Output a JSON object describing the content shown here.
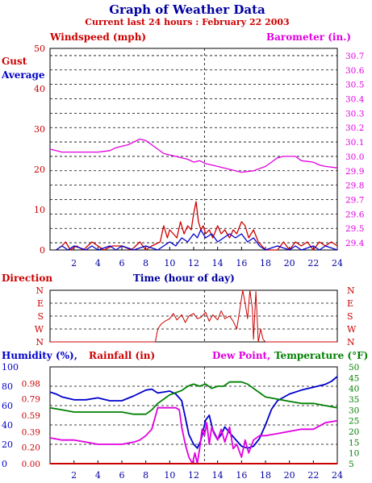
{
  "header": {
    "title": "Graph of Weather Data",
    "subtitle": "Current last 24 hours : February 22 2003"
  },
  "colors": {
    "navy": "#0000a0",
    "red": "#cc0000",
    "magenta": "#e000e0",
    "green": "#008000",
    "blue": "#0000cc",
    "black": "#000000"
  },
  "chart_data": [
    {
      "type": "line",
      "labels": {
        "windspeed": "Windspeed (mph)",
        "barometer": "Barometer (in.)",
        "gust": "Gust",
        "average": "Average",
        "xlabel": "Time (hour of day)"
      },
      "xlim": [
        0,
        24
      ],
      "x_ticks": [
        2,
        4,
        6,
        8,
        10,
        12,
        14,
        16,
        18,
        20,
        22,
        24
      ],
      "left_axis": {
        "ylim": [
          0,
          50
        ],
        "ticks": [
          0,
          10,
          20,
          30,
          40,
          50
        ]
      },
      "right_axis": {
        "ylim": [
          29.35,
          30.75
        ],
        "ticks": [
          29.4,
          29.5,
          29.6,
          29.7,
          29.8,
          29.9,
          30.0,
          30.1,
          30.2,
          30.3,
          30.4,
          30.5,
          30.6,
          30.7
        ]
      },
      "series": [
        {
          "name": "Barometer (in.)",
          "axis": "right",
          "color": "#e000e0",
          "x": [
            0,
            0.5,
            1,
            2,
            3,
            4,
            5,
            5.5,
            6,
            6.5,
            7,
            7.5,
            8,
            8.5,
            9,
            9.5,
            10,
            11,
            11.5,
            12,
            12.5,
            13,
            13.5,
            14,
            15,
            16,
            17,
            18,
            18.5,
            19,
            19.5,
            20,
            20.5,
            21,
            22,
            22.5,
            23,
            24
          ],
          "y": [
            30.05,
            30.04,
            30.03,
            30.03,
            30.03,
            30.03,
            30.04,
            30.06,
            30.07,
            30.08,
            30.1,
            30.12,
            30.11,
            30.08,
            30.05,
            30.02,
            30.01,
            29.99,
            29.98,
            29.96,
            29.97,
            29.95,
            29.94,
            29.93,
            29.91,
            29.89,
            29.9,
            29.93,
            29.96,
            29.99,
            30.0,
            30.0,
            30.0,
            29.97,
            29.96,
            29.94,
            29.93,
            29.92
          ]
        },
        {
          "name": "Gust",
          "axis": "left",
          "color": "#cc0000",
          "x": [
            0.5,
            1,
            1.3,
            1.7,
            2.2,
            2.8,
            3.5,
            4.5,
            5.2,
            6,
            6.8,
            7.5,
            8,
            8.5,
            9.2,
            9.5,
            9.8,
            10,
            10.3,
            10.6,
            10.9,
            11.2,
            11.5,
            11.8,
            12,
            12.2,
            12.4,
            12.6,
            12.8,
            13,
            13.3,
            13.6,
            14,
            14.3,
            14.6,
            15,
            15.3,
            15.6,
            16,
            16.3,
            16.6,
            17,
            17.4,
            18,
            19,
            19.5,
            20,
            20.5,
            21,
            21.5,
            22,
            22.5,
            23,
            23.5,
            24
          ],
          "y": [
            0,
            1,
            2,
            0,
            1,
            0,
            2,
            0,
            1,
            1,
            0,
            2,
            0,
            1,
            2,
            6,
            3,
            5,
            4,
            3,
            7,
            4,
            6,
            5,
            9,
            12,
            7,
            5,
            6,
            4,
            5,
            3,
            6,
            4,
            5,
            3,
            5,
            4,
            7,
            6,
            3,
            5,
            2,
            0,
            0,
            2,
            0,
            2,
            1,
            2,
            0,
            2,
            1,
            2,
            1
          ]
        },
        {
          "name": "Average",
          "axis": "left",
          "color": "#0000cc",
          "x": [
            0.5,
            1,
            1.5,
            2,
            3,
            3.5,
            4,
            5,
            5.5,
            6,
            7,
            8,
            9,
            9.5,
            10,
            10.5,
            11,
            11.5,
            12,
            12.3,
            12.6,
            13,
            13.5,
            14,
            14.5,
            15,
            15.5,
            16,
            16.5,
            17,
            17.5,
            18,
            19,
            20,
            20.5,
            21,
            22,
            22.5,
            23,
            24
          ],
          "y": [
            0,
            1,
            0,
            1,
            0,
            1,
            0,
            1,
            0,
            1,
            0,
            1,
            0,
            1,
            2,
            1,
            3,
            2,
            4,
            3,
            5,
            3,
            4,
            2,
            3,
            4,
            3,
            4,
            2,
            3,
            1,
            0,
            1,
            0,
            1,
            0,
            1,
            0,
            1,
            0
          ]
        }
      ]
    },
    {
      "type": "line",
      "labels": {
        "direction": "Direction"
      },
      "xlim": [
        0,
        24
      ],
      "y_categories": [
        "N",
        "W",
        "S",
        "E",
        "N"
      ],
      "series": [
        {
          "name": "Direction",
          "color": "#cc0000",
          "x": [
            0,
            4,
            8,
            8.8,
            9,
            9.3,
            9.6,
            10,
            10.3,
            10.6,
            11,
            11.3,
            11.6,
            12,
            12.3,
            12.6,
            13,
            13.3,
            13.6,
            14,
            14.3,
            14.6,
            15,
            15.3,
            15.6,
            15.9,
            16.1,
            16.3,
            16.5,
            16.7,
            16.9,
            17,
            17.2,
            17.4,
            17.6,
            17.8,
            18,
            20,
            22,
            24
          ],
          "y": [
            0,
            0,
            0,
            0,
            1.0,
            1.4,
            1.6,
            1.8,
            2.2,
            1.7,
            2.1,
            1.5,
            2.0,
            2.2,
            1.8,
            1.9,
            2.3,
            1.6,
            2.1,
            1.7,
            2.4,
            1.8,
            2.0,
            1.6,
            1.0,
            2.8,
            4.0,
            3.0,
            1.8,
            4.0,
            2.6,
            0.2,
            3.9,
            0,
            1.0,
            0.2,
            0,
            0,
            0,
            0
          ]
        }
      ]
    },
    {
      "type": "line",
      "labels": {
        "humidity": "Humidity (%),",
        "rainfall": "Rainfall (in)",
        "dewpoint": "Dew Point,",
        "temperature": "Temperature (°F)"
      },
      "xlim": [
        0,
        24
      ],
      "x_ticks": [
        2,
        4,
        6,
        8,
        10,
        12,
        14,
        16,
        18,
        20,
        22,
        24
      ],
      "humidity_axis": {
        "ylim": [
          0,
          100
        ],
        "ticks": [
          0,
          20,
          40,
          60,
          80,
          100
        ]
      },
      "rainfall_axis": {
        "ylim": [
          0,
          1.18
        ],
        "ticks": [
          "0.00",
          "0.20",
          "0.39",
          "0.59",
          "0.79",
          "0.98"
        ]
      },
      "temperature_axis": {
        "ylim": [
          5,
          50
        ],
        "ticks": [
          5,
          10,
          15,
          20,
          25,
          30,
          35,
          40,
          45,
          50
        ]
      },
      "series": [
        {
          "name": "Humidity",
          "axis": "humidity",
          "color": "#0000cc",
          "x": [
            0,
            0.5,
            1,
            2,
            3,
            4,
            5,
            6,
            7,
            8,
            8.5,
            9,
            10,
            10.5,
            11,
            11.3,
            11.6,
            12,
            12.3,
            12.6,
            13,
            13.3,
            13.6,
            14,
            14.3,
            14.6,
            15,
            15.5,
            16,
            16.5,
            17,
            17.5,
            18,
            18.5,
            19,
            20,
            21,
            22,
            23,
            23.5,
            24
          ],
          "y": [
            74,
            72,
            69,
            66,
            66,
            68,
            65,
            65,
            70,
            76,
            77,
            73,
            75,
            72,
            65,
            48,
            30,
            20,
            16,
            24,
            45,
            50,
            35,
            25,
            30,
            38,
            32,
            25,
            18,
            16,
            18,
            26,
            40,
            56,
            65,
            72,
            76,
            79,
            82,
            85,
            90
          ]
        },
        {
          "name": "Dew Point",
          "axis": "temperature",
          "color": "#e000e0",
          "x": [
            0,
            1,
            2,
            3,
            4,
            5,
            6,
            7,
            7.5,
            8,
            8.5,
            9,
            10,
            10.5,
            10.8,
            11,
            11.3,
            11.6,
            11.9,
            12.1,
            12.3,
            12.5,
            12.7,
            12.9,
            13.1,
            13.3,
            13.5,
            13.7,
            14,
            14.3,
            14.6,
            15,
            15.3,
            15.6,
            16,
            16.3,
            16.6,
            17,
            17.5,
            18,
            19,
            20,
            21,
            22,
            23,
            24
          ],
          "y": [
            17,
            16,
            16,
            15,
            14,
            14,
            14,
            15,
            16,
            18,
            21,
            31,
            31,
            31,
            30,
            22,
            14,
            8,
            5,
            10,
            5,
            12,
            21,
            18,
            24,
            14,
            22,
            19,
            16,
            21,
            15,
            22,
            12,
            14,
            8,
            16,
            10,
            16,
            18,
            18,
            19,
            20,
            21,
            21,
            24,
            25
          ]
        },
        {
          "name": "Temperature",
          "axis": "temperature",
          "color": "#008000",
          "x": [
            0,
            1,
            2,
            3,
            4,
            5,
            6,
            7,
            8,
            8.5,
            9,
            9.5,
            10,
            10.5,
            11,
            11.5,
            12,
            12.5,
            13,
            13.5,
            14,
            14.5,
            15,
            15.5,
            16,
            16.5,
            17,
            17.5,
            18,
            19,
            20,
            21,
            22,
            23,
            24
          ],
          "y": [
            31,
            30,
            29,
            29,
            29,
            29,
            29,
            28,
            28,
            30,
            33,
            35,
            37,
            38,
            39,
            41,
            42,
            41,
            42,
            40,
            41,
            41,
            43,
            43,
            43,
            42,
            40,
            38,
            36,
            35,
            34,
            33,
            33,
            32,
            31
          ]
        },
        {
          "name": "Rainfall",
          "axis": "rainfall",
          "color": "#cc0000",
          "x": [
            0,
            24
          ],
          "y": [
            0,
            0
          ]
        }
      ]
    }
  ]
}
